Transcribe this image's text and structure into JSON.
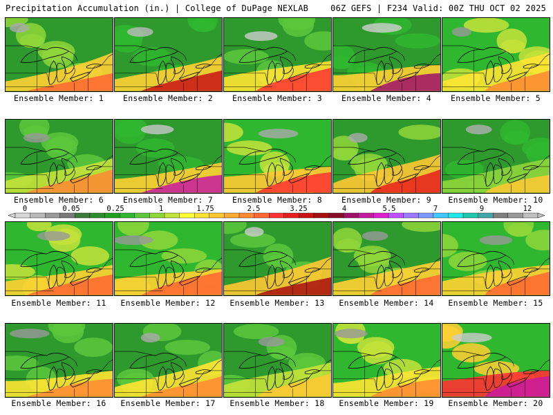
{
  "header": {
    "left": "Precipitation Accumulation (in.) | College of DuPage NEXLAB",
    "right": "06Z GEFS | F234 Valid: 00Z THU OCT 02 2025"
  },
  "colorbar": {
    "labels": [
      "0",
      "0.05",
      "0.25",
      "1",
      "1.75",
      "2.5",
      "3.25",
      "4",
      "5.5",
      "7",
      "9",
      "12"
    ],
    "colors": [
      "#d8d8d8",
      "#b9b9b9",
      "#9a9a9a",
      "#7a7a7a",
      "#3b7a3b",
      "#2a8f2a",
      "#1fa01f",
      "#2fb72f",
      "#5cc83c",
      "#8fd63a",
      "#c5e33a",
      "#ffff33",
      "#ffe433",
      "#ffc833",
      "#ffaa33",
      "#ff8833",
      "#ff6633",
      "#ff3333",
      "#e81e1e",
      "#c81414",
      "#a80f0f",
      "#8a0a2a",
      "#a0106a",
      "#c81aa0",
      "#e020d0",
      "#c050ff",
      "#9a7aff",
      "#7a9aff",
      "#40c8ff",
      "#20e8e8",
      "#20c8b0",
      "#40a8a8",
      "#808080",
      "#9a9a9a",
      "#c0c0c0"
    ]
  },
  "panels": [
    {
      "label": "Ensemble Member: 1"
    },
    {
      "label": "Ensemble Member: 2"
    },
    {
      "label": "Ensemble Member: 3"
    },
    {
      "label": "Ensemble Member: 4"
    },
    {
      "label": "Ensemble Member: 5"
    },
    {
      "label": "Ensemble Member: 6"
    },
    {
      "label": "Ensemble Member: 7"
    },
    {
      "label": "Ensemble Member: 8"
    },
    {
      "label": "Ensemble Member: 9"
    },
    {
      "label": "Ensemble Member: 10"
    },
    {
      "label": "Ensemble Member: 11"
    },
    {
      "label": "Ensemble Member: 12"
    },
    {
      "label": "Ensemble Member: 13"
    },
    {
      "label": "Ensemble Member: 14"
    },
    {
      "label": "Ensemble Member: 15"
    },
    {
      "label": "Ensemble Member: 16"
    },
    {
      "label": "Ensemble Member: 17"
    },
    {
      "label": "Ensemble Member: 18"
    },
    {
      "label": "Ensemble Member: 19"
    },
    {
      "label": "Ensemble Member: 20"
    }
  ]
}
